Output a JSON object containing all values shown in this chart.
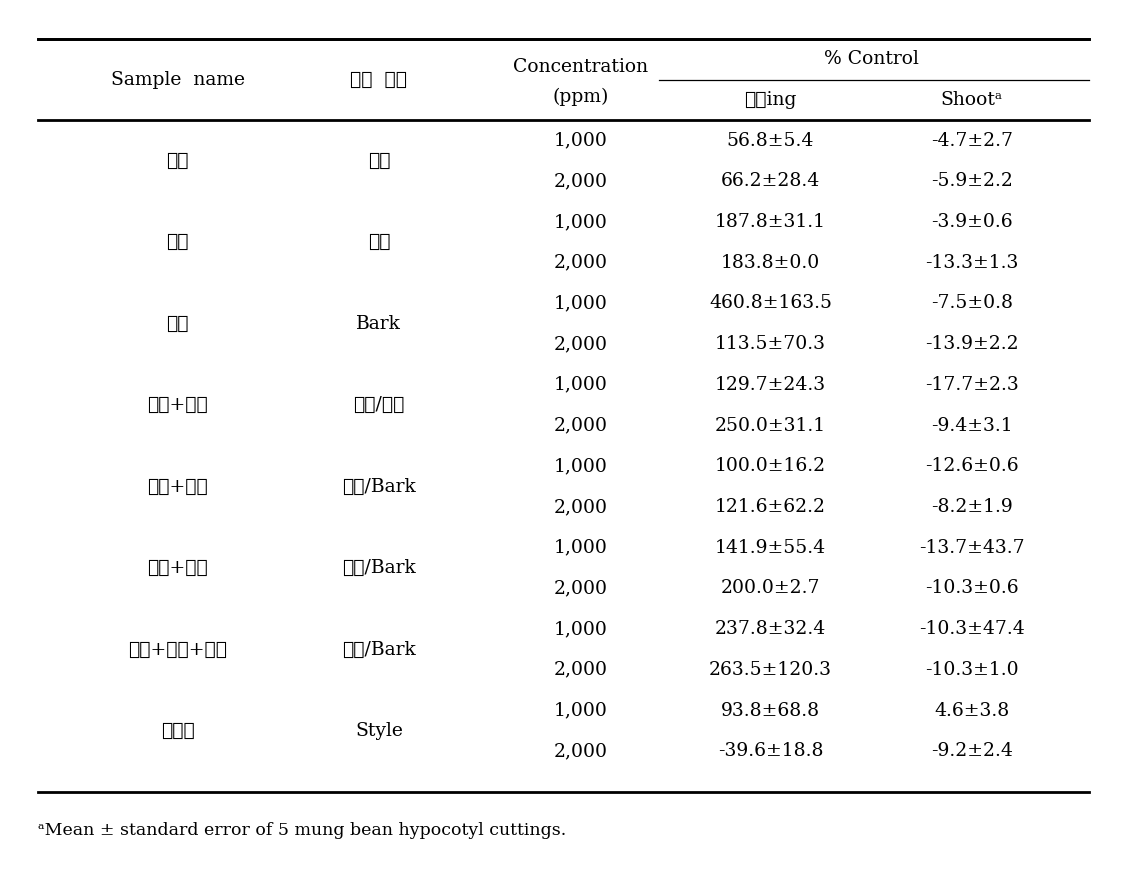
{
  "col1_header": "Sample  name",
  "col2_header": "식물  부위",
  "col3_header": "Concentration",
  "col3_header2": "(ppm)",
  "pct_control_header": "% Control",
  "col4_header": "빌리ing",
  "col5_header": "Shootᵃ",
  "rows": [
    [
      "감초",
      "빌리",
      "1,000",
      "56.8±5.4",
      "-4.7±2.7"
    ],
    [
      "",
      "",
      "2,000",
      "66.2±28.4",
      "-5.9±2.2"
    ],
    [
      "당귀",
      "빌리",
      "1,000",
      "187.8±31.1",
      "-3.9±0.6"
    ],
    [
      "",
      "",
      "2,000",
      "183.8±0.0",
      "-13.3±1.3"
    ],
    [
      "육계",
      "Bark",
      "1,000",
      "460.8±163.5",
      "-7.5±0.8"
    ],
    [
      "",
      "",
      "2,000",
      "113.5±70.3",
      "-13.9±2.2"
    ],
    [
      "감초+당귀",
      "빌리/빌리",
      "1,000",
      "129.7±24.3",
      "-17.7±2.3"
    ],
    [
      "",
      "",
      "2,000",
      "250.0±31.1",
      "-9.4±3.1"
    ],
    [
      "감초+육계",
      "빌리/Bark",
      "1,000",
      "100.0±16.2",
      "-12.6±0.6"
    ],
    [
      "",
      "",
      "2,000",
      "121.6±62.2",
      "-8.2±1.9"
    ],
    [
      "당귀+육계",
      "빌리/Bark",
      "1,000",
      "141.9±55.4",
      "-13.7±43.7"
    ],
    [
      "",
      "",
      "2,000",
      "200.0±2.7",
      "-10.3±0.6"
    ],
    [
      "감초+당귀+육계",
      "빌리/Bark",
      "1,000",
      "237.8±32.4",
      "-10.3±47.4"
    ],
    [
      "",
      "",
      "2,000",
      "263.5±120.3",
      "-10.3±1.0"
    ],
    [
      "옥수수",
      "Style",
      "1,000",
      "93.8±68.8",
      "4.6±3.8"
    ],
    [
      "",
      "",
      "2,000",
      "-39.6±18.8",
      "-9.2±2.4"
    ]
  ],
  "footnote": "ᵃMean ± standard error of 5 mung bean hypocotyl cuttings.",
  "bg_color": "#ffffff",
  "text_color": "#000000",
  "font_size": 13.5,
  "header_font_size": 13.5,
  "footnote_font_size": 12.5
}
